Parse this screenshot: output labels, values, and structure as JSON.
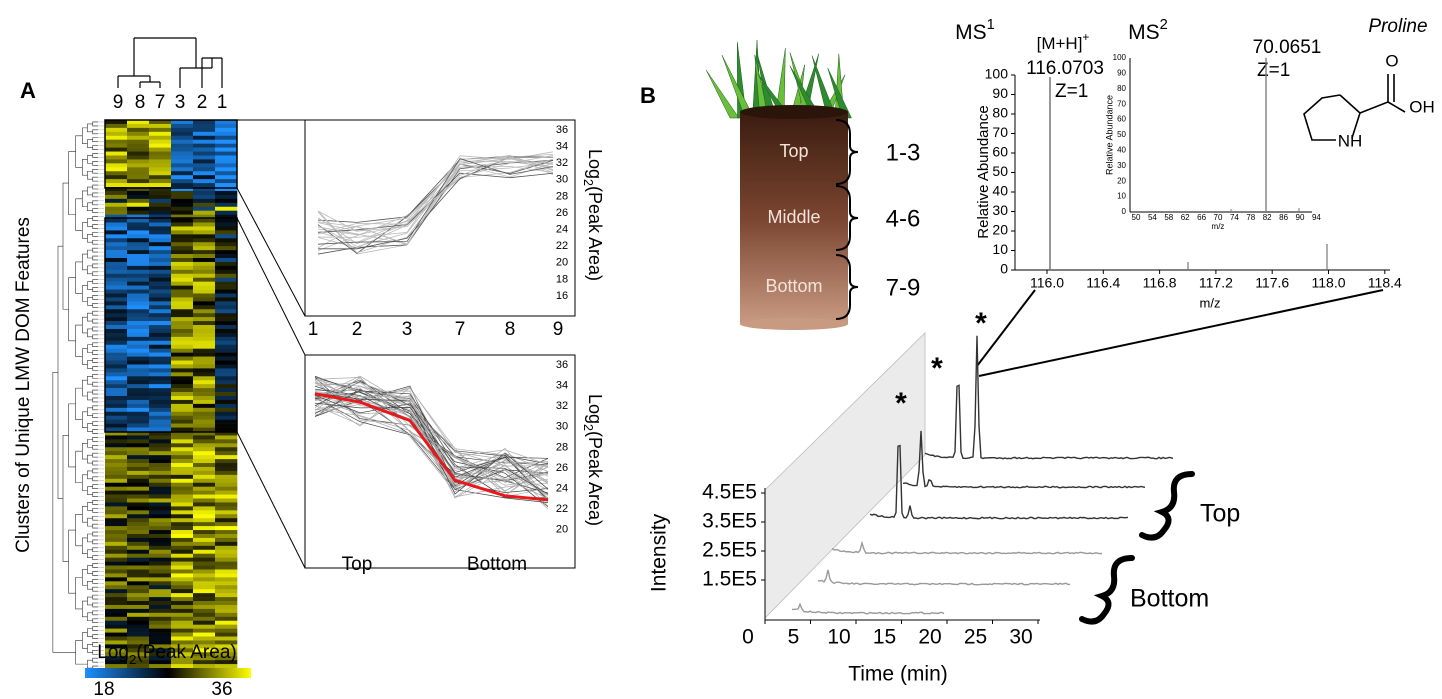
{
  "panel_a": {
    "label": "A",
    "dendrogram_labels": [
      "9",
      "8",
      "7",
      "3",
      "2",
      "1"
    ],
    "y_axis_title": "Clusters of Unique LMW DOM Features",
    "colorbar": {
      "title": {
        "text": "Log",
        "subscript": "2",
        "rest": "(Peak Area)"
      },
      "min": "18",
      "max": "36"
    },
    "upper_plot": {
      "y_title": {
        "text": "Log",
        "subscript": "2",
        "rest": "(Peak Area)"
      },
      "y_ticks": [
        "36",
        "34",
        "32",
        "30",
        "28",
        "26",
        "24",
        "22",
        "20",
        "18",
        "16"
      ],
      "x_labels": [
        "1",
        "2",
        "3",
        "7",
        "8",
        "9"
      ]
    },
    "lower_plot": {
      "y_title": {
        "text": "Log",
        "subscript": "2",
        "rest": "(Peak Area)"
      },
      "y_ticks": [
        "36",
        "34",
        "32",
        "30",
        "28",
        "26",
        "24",
        "22",
        "20"
      ],
      "x_labels": [
        "Top",
        "Bottom"
      ]
    }
  },
  "panel_b": {
    "label": "B",
    "soil_layers": [
      {
        "name": "Top",
        "samples": "1-3"
      },
      {
        "name": "Middle",
        "samples": "4-6"
      },
      {
        "name": "Bottom",
        "samples": "7-9"
      }
    ],
    "ms1": {
      "title": {
        "text": "MS",
        "superscript": "1"
      },
      "ion": {
        "text": "[M+H]",
        "superscript": "+"
      },
      "mz": "116.0703",
      "charge": "Z=1",
      "y_title": "Relative Abundance",
      "y_ticks": [
        "0",
        "10",
        "20",
        "30",
        "40",
        "50",
        "60",
        "70",
        "80",
        "90",
        "100"
      ],
      "x_ticks": [
        "116.0",
        "116.4",
        "116.8",
        "117.2",
        "117.6",
        "118.0",
        "118.4"
      ],
      "x_title": "m/z"
    },
    "ms2": {
      "title": {
        "text": "MS",
        "superscript": "2"
      },
      "mz": "70.0651",
      "charge": "Z=1",
      "y_title": "Relative Abundance",
      "y_ticks": [
        "0",
        "10",
        "20",
        "30",
        "40",
        "50",
        "60",
        "70",
        "80",
        "90",
        "100"
      ],
      "x_ticks": [
        "50",
        "54",
        "58",
        "62",
        "66",
        "70",
        "74",
        "78",
        "82",
        "86",
        "90",
        "94"
      ],
      "x_title": "m/z"
    },
    "compound": {
      "name": "Proline",
      "atoms": [
        "O",
        "OH",
        "NH"
      ]
    },
    "chromatogram": {
      "y_title": "Intensity",
      "y_ticks": [
        "1.5E5",
        "2.5E5",
        "3.5E5",
        "4.5E5"
      ],
      "x_ticks": [
        "0",
        "5",
        "10",
        "15",
        "20",
        "25",
        "30"
      ],
      "x_title": "Time (min)",
      "peak_markers": [
        "*",
        "*",
        "*"
      ],
      "groups": [
        "Top",
        "Bottom"
      ]
    }
  }
}
